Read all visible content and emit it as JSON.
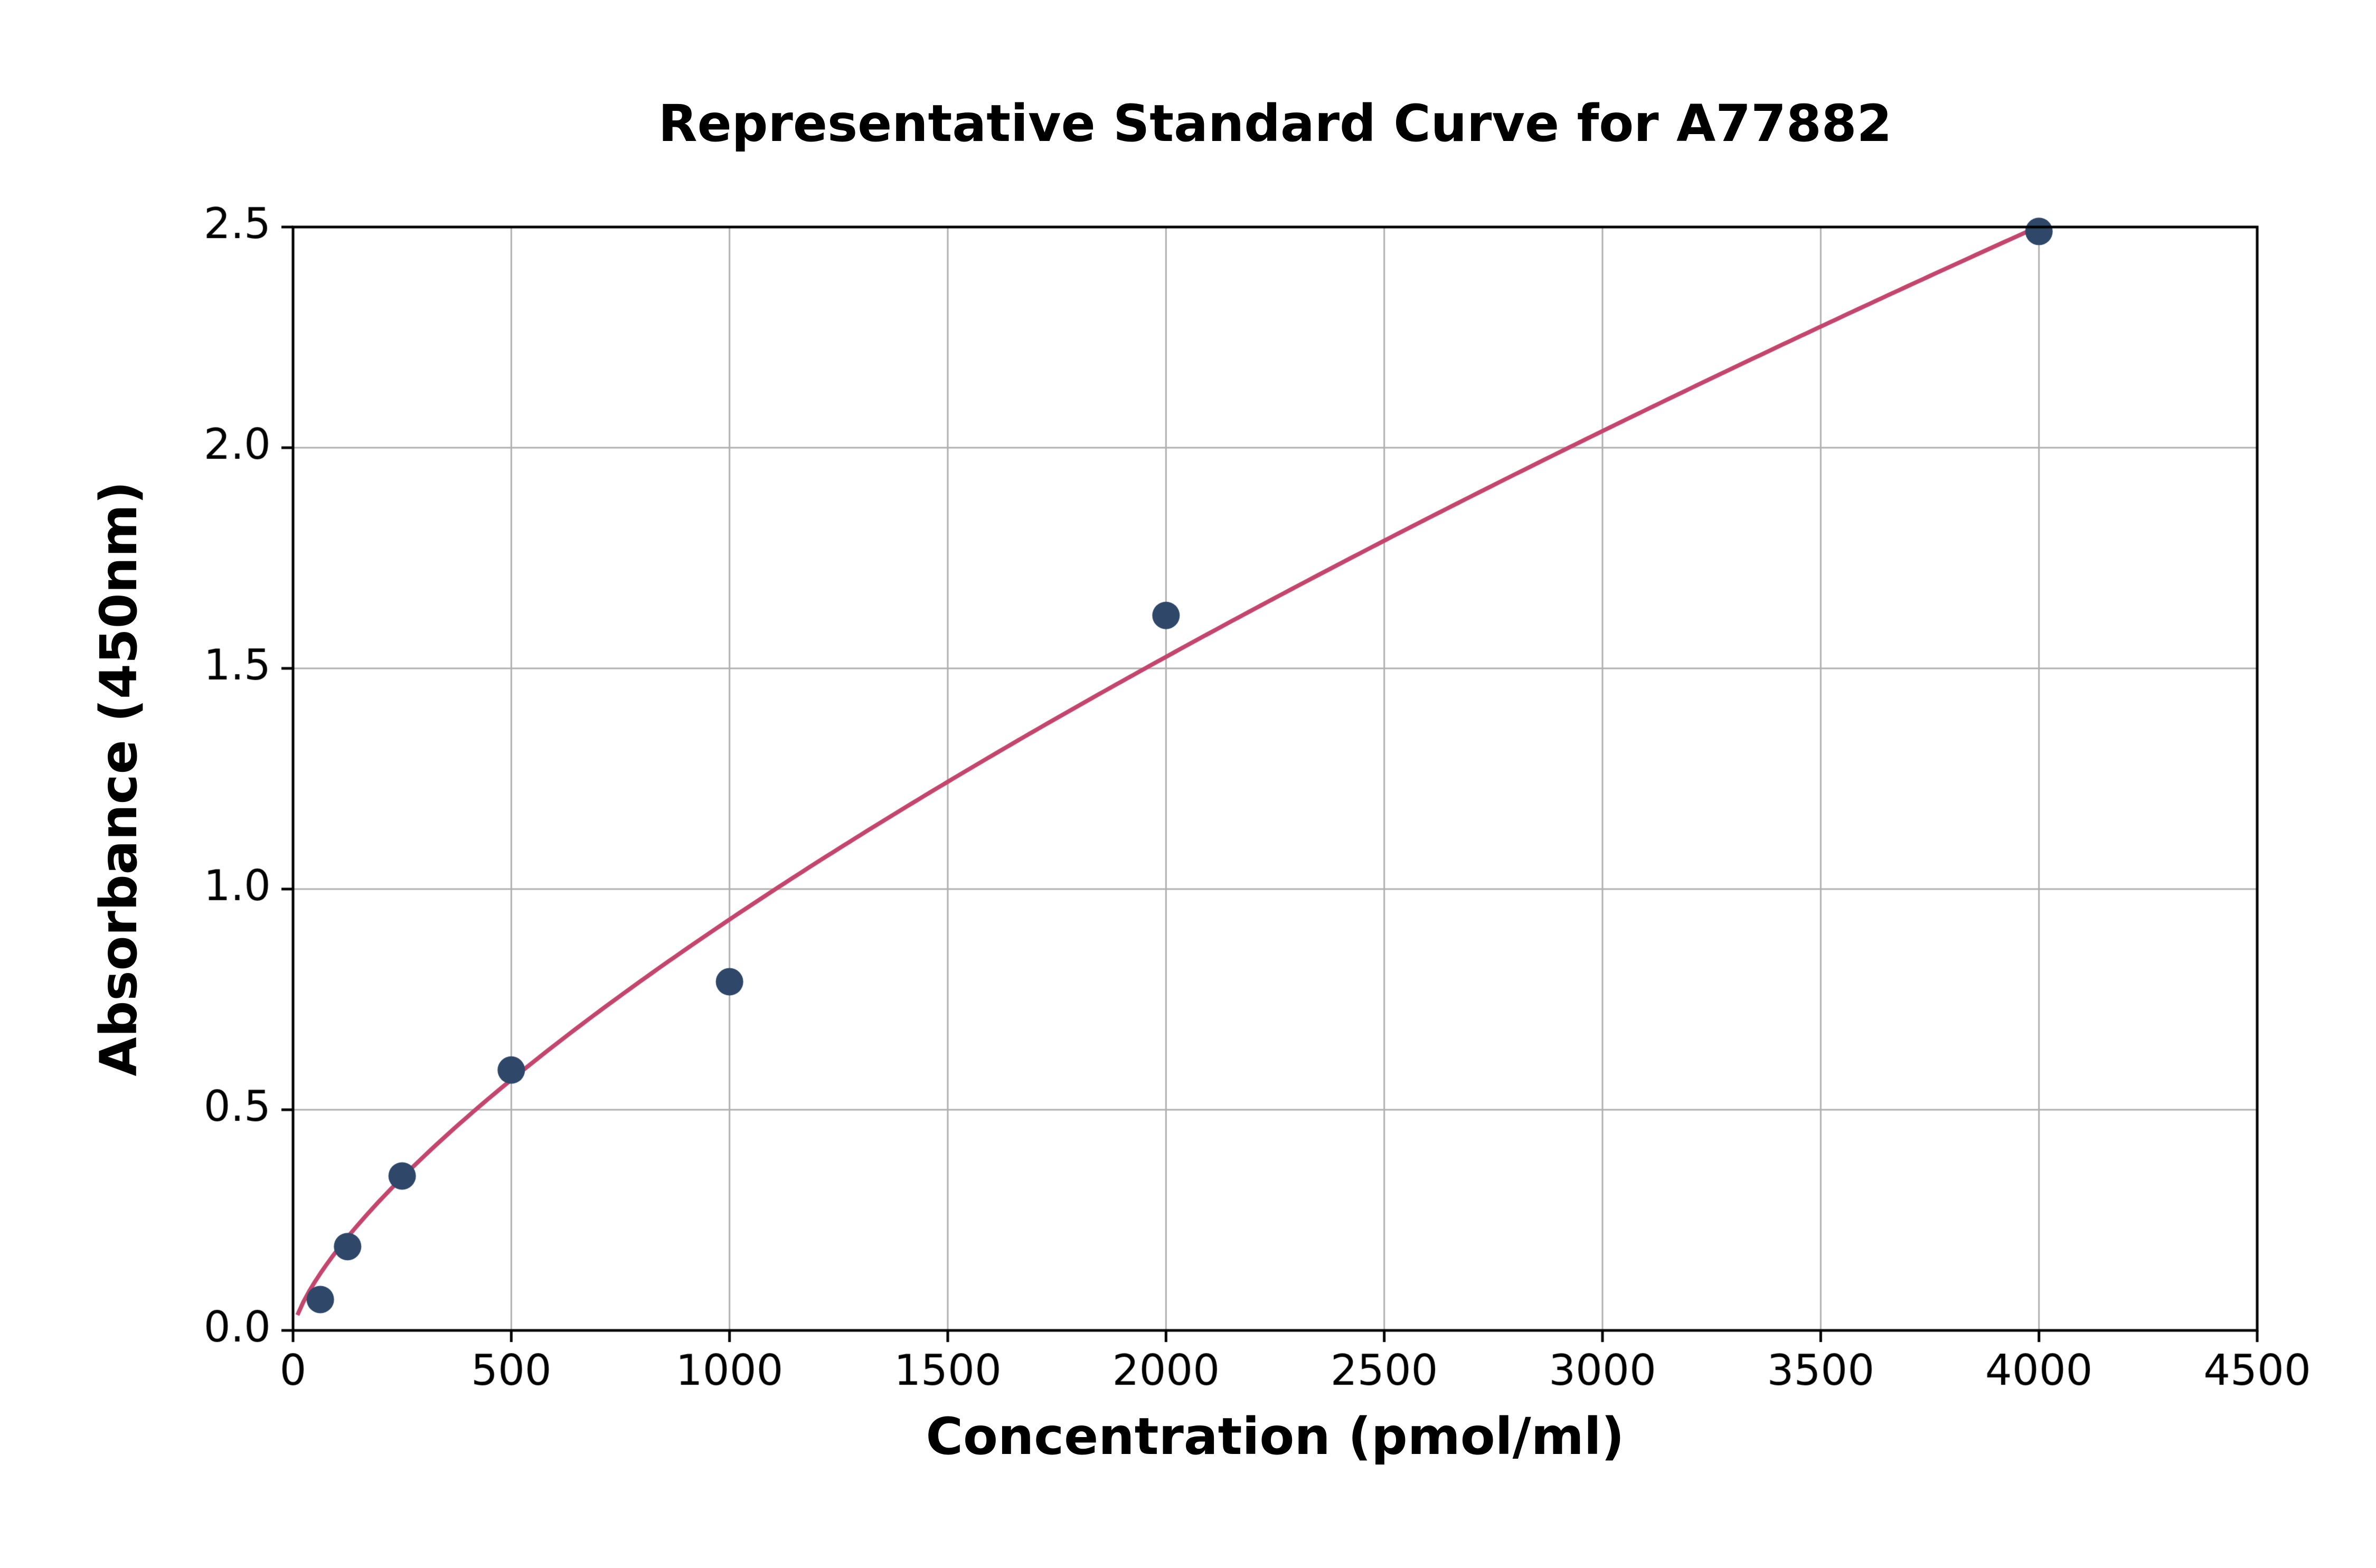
{
  "chart_data": {
    "type": "scatter",
    "title": "Representative Standard Curve for A77882",
    "xlabel": "Concentration (pmol/ml)",
    "ylabel": "Absorbance (450nm)",
    "xlim": [
      0,
      4500
    ],
    "ylim": [
      0,
      2.5
    ],
    "grid": true,
    "legend": "none",
    "x_ticks": [
      0,
      500,
      1000,
      1500,
      2000,
      2500,
      3000,
      3500,
      4000,
      4500
    ],
    "x_tick_labels": [
      "0",
      "500",
      "1000",
      "1500",
      "2000",
      "2500",
      "3000",
      "3500",
      "4000",
      "4500"
    ],
    "y_ticks": [
      0.0,
      0.5,
      1.0,
      1.5,
      2.0,
      2.5
    ],
    "y_tick_labels": [
      "0.0",
      "0.5",
      "1.0",
      "1.5",
      "2.0",
      "2.5"
    ],
    "points": {
      "x": [
        62.5,
        125,
        250,
        500,
        1000,
        2000,
        4000
      ],
      "y": [
        0.07,
        0.19,
        0.35,
        0.59,
        0.79,
        1.62,
        2.49
      ]
    },
    "fit_curve": {
      "type": "power",
      "a": 0.00676,
      "b": 0.713,
      "x_start": 10,
      "x_end": 4000
    },
    "colors": {
      "points": "#2f486a",
      "curve": "#c4466e",
      "grid": "#b0b0b0",
      "axes": "#000000",
      "background": "#ffffff"
    }
  }
}
